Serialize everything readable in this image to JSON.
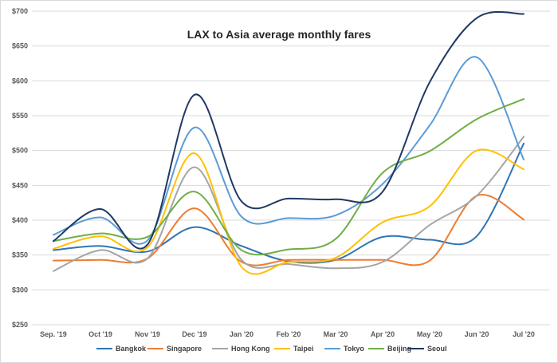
{
  "chart_data": {
    "type": "line",
    "title": "LAX to Asia average monthly fares",
    "xlabel": "",
    "ylabel": "",
    "ylim": [
      250,
      700
    ],
    "y_ticks": [
      "$250",
      "$300",
      "$350",
      "$400",
      "$450",
      "$500",
      "$550",
      "$600",
      "$650",
      "$700"
    ],
    "y_tick_values": [
      250,
      300,
      350,
      400,
      450,
      500,
      550,
      600,
      650,
      700
    ],
    "categories": [
      "Sep. '19",
      "Oct '19",
      "Nov '19",
      "Dec '19",
      "Jan '20",
      "Feb '20",
      "Mar '20",
      "Apr '20",
      "May '20",
      "Jun '20",
      "Jul '20"
    ],
    "grid": true,
    "legend_position": "bottom",
    "series": [
      {
        "name": "Bangkok",
        "color": "#2e75b6",
        "values": [
          357,
          363,
          355,
          390,
          363,
          341,
          343,
          376,
          372,
          377,
          510
        ]
      },
      {
        "name": "Singapore",
        "color": "#ed7d31",
        "values": [
          342,
          343,
          345,
          417,
          340,
          343,
          343,
          343,
          342,
          435,
          401
        ]
      },
      {
        "name": "Hong Kong",
        "color": "#a5a5a5",
        "values": [
          327,
          357,
          345,
          476,
          343,
          337,
          331,
          340,
          393,
          435,
          520
        ]
      },
      {
        "name": "Taipei",
        "color": "#ffc000",
        "values": [
          359,
          377,
          361,
          496,
          333,
          340,
          346,
          397,
          420,
          500,
          473
        ]
      },
      {
        "name": "Tokyo",
        "color": "#5b9bd5",
        "values": [
          379,
          404,
          371,
          533,
          405,
          403,
          407,
          452,
          536,
          634,
          487
        ]
      },
      {
        "name": "Beijing",
        "color": "#70ad47",
        "values": [
          370,
          381,
          376,
          441,
          357,
          358,
          373,
          468,
          499,
          545,
          574
        ]
      },
      {
        "name": "Seoul",
        "color": "#1f3864",
        "values": [
          370,
          416,
          365,
          580,
          427,
          431,
          430,
          441,
          598,
          690,
          696
        ]
      }
    ]
  }
}
